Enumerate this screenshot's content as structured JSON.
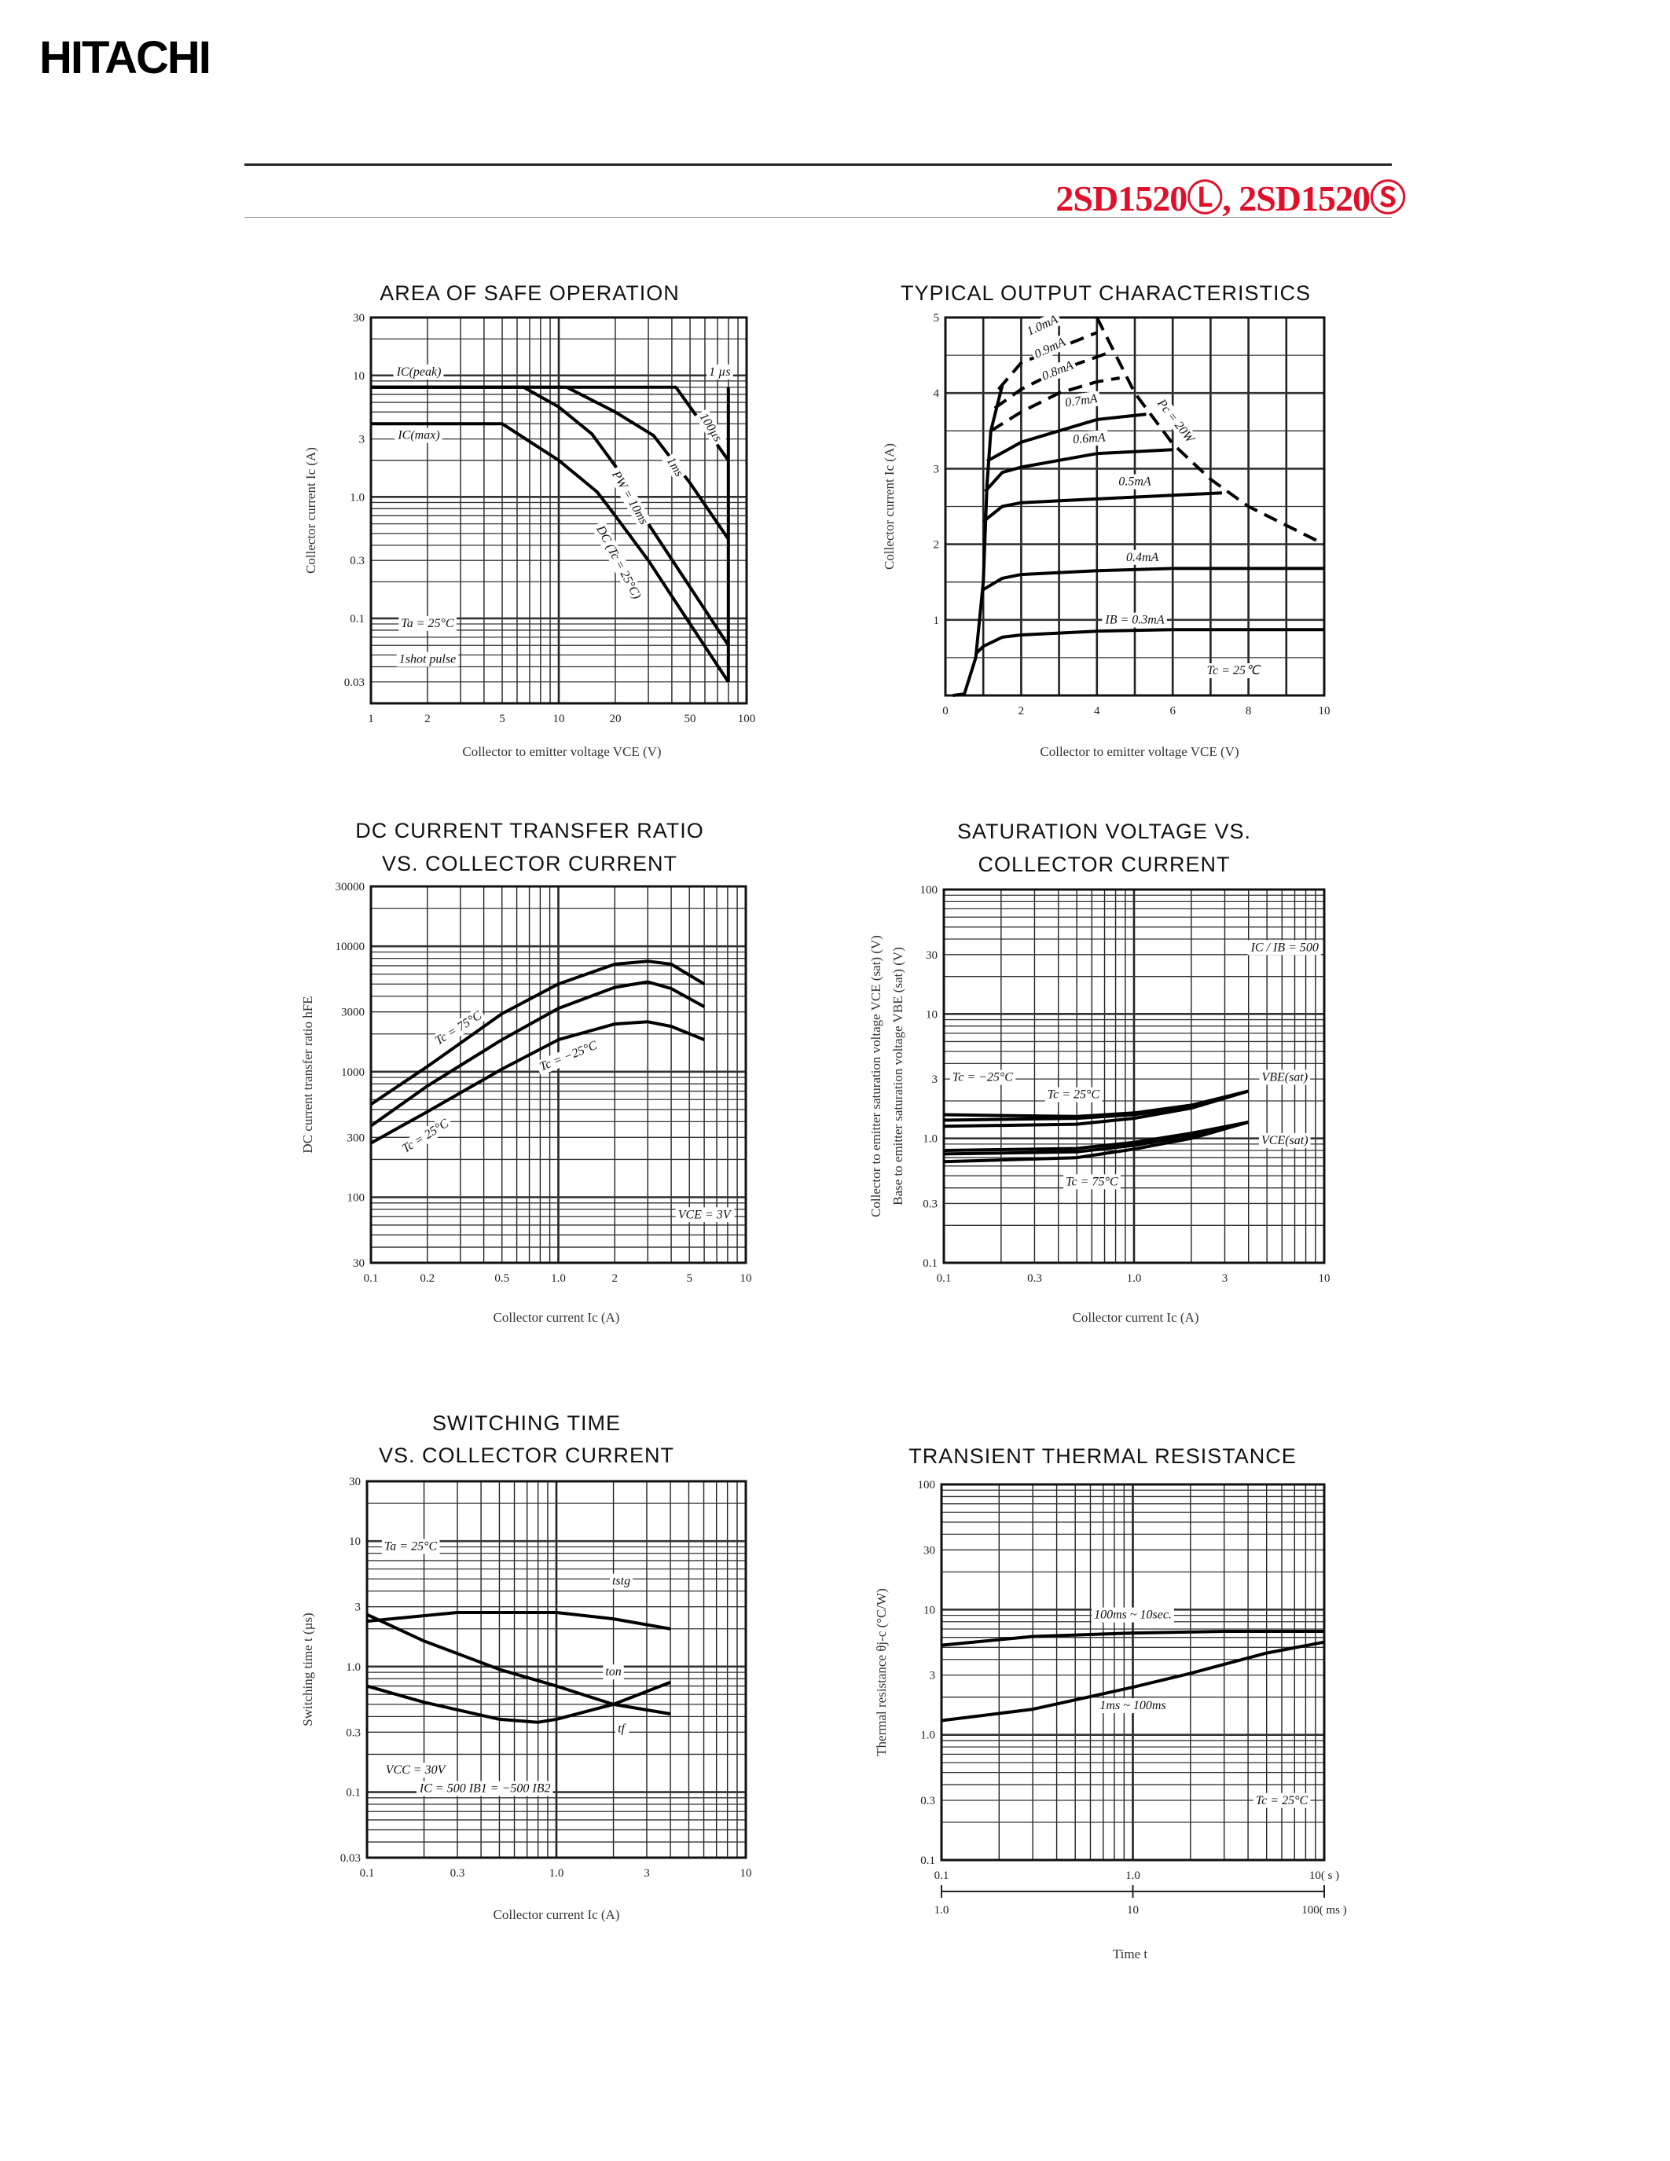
{
  "header": {
    "logo": "HITACHI",
    "part_number": "2SD1520Ⓛ, 2SD1520Ⓢ",
    "part_color": "#e0102a"
  },
  "chart_data": [
    {
      "type": "line",
      "title": [
        "AREA OF SAFE OPERATION"
      ],
      "xlabel": "Collector to emitter voltage  VCE (V)",
      "ylabel": "Collector current  Ic (A)",
      "xscale": "log",
      "yscale": "log",
      "xlim": [
        1,
        100
      ],
      "ylim": [
        0.02,
        30
      ],
      "grid": true,
      "xticks": [
        {
          "v": 1,
          "label": "1"
        },
        {
          "v": 2,
          "label": "2"
        },
        {
          "v": 5,
          "label": "5"
        },
        {
          "v": 10,
          "label": "10"
        },
        {
          "v": 20,
          "label": "20"
        },
        {
          "v": 50,
          "label": "50"
        },
        {
          "v": 100,
          "label": "100"
        }
      ],
      "yticks": [
        {
          "v": 30,
          "label": "30"
        },
        {
          "v": 10,
          "label": "10"
        },
        {
          "v": 3,
          "label": "3"
        },
        {
          "v": 1,
          "label": "1.0"
        },
        {
          "v": 0.3,
          "label": "0.3"
        },
        {
          "v": 0.1,
          "label": "0.1"
        },
        {
          "v": 0.03,
          "label": "0.03"
        }
      ],
      "series": [
        {
          "name": "100µs",
          "x": [
            1,
            42,
            80
          ],
          "y": [
            8,
            8,
            2
          ]
        },
        {
          "name": "1ms",
          "x": [
            1,
            11,
            20,
            32,
            50,
            80
          ],
          "y": [
            8,
            8,
            5,
            3.2,
            1.3,
            0.45
          ]
        },
        {
          "name": "PW = 10ms",
          "x": [
            1,
            6.5,
            10,
            15,
            20,
            30,
            80
          ],
          "y": [
            8,
            8,
            5.5,
            3.3,
            1.8,
            0.6,
            0.06
          ]
        },
        {
          "name": "DC (Tc = 25°C)",
          "x": [
            1,
            5,
            10,
            16,
            20,
            30,
            50,
            80
          ],
          "y": [
            4,
            4,
            2,
            1.1,
            0.7,
            0.3,
            0.09,
            0.03
          ]
        },
        {
          "name": "",
          "x": [
            80,
            80
          ],
          "y": [
            8,
            0.03
          ]
        }
      ],
      "annotations": [
        "IC(peak)",
        "IC(max)",
        "1 µs",
        "100µs",
        "1ms",
        "PW = 10ms",
        "DC (Tc = 25°C)",
        "Ta = 25°C",
        "1shot pulse"
      ]
    },
    {
      "type": "line",
      "title": [
        "TYPICAL OUTPUT CHARACTERISTICS"
      ],
      "xlabel": "Collector to emitter voltage  VCE (V)",
      "ylabel": "Collector current  Ic (A)",
      "xscale": "linear",
      "yscale": "linear",
      "xlim": [
        0,
        10
      ],
      "ylim": [
        0,
        5
      ],
      "grid": true,
      "xticks": [
        {
          "v": 0,
          "label": "0"
        },
        {
          "v": 2,
          "label": "2"
        },
        {
          "v": 4,
          "label": "4"
        },
        {
          "v": 6,
          "label": "6"
        },
        {
          "v": 8,
          "label": "8"
        },
        {
          "v": 10,
          "label": "10"
        }
      ],
      "yticks": [
        {
          "v": 1,
          "label": "1"
        },
        {
          "v": 2,
          "label": "2"
        },
        {
          "v": 3,
          "label": "3"
        },
        {
          "v": 4,
          "label": "4"
        },
        {
          "v": 5,
          "label": "5"
        }
      ],
      "series": [
        {
          "name": "",
          "x": [
            0.2,
            0.5,
            0.8,
            1,
            1.1,
            1.2,
            1.5
          ],
          "y": [
            0,
            0.02,
            0.5,
            1.5,
            2.8,
            3.5,
            4.1
          ]
        },
        {
          "name": "IB = 0.3mA",
          "x": [
            0.8,
            1,
            1.5,
            2,
            4,
            6,
            10
          ],
          "y": [
            0.55,
            0.65,
            0.77,
            0.8,
            0.85,
            0.87,
            0.87
          ]
        },
        {
          "name": "0.4mA",
          "x": [
            1,
            1.5,
            2,
            4,
            6,
            10
          ],
          "y": [
            1.4,
            1.55,
            1.6,
            1.65,
            1.68,
            1.68
          ]
        },
        {
          "name": "0.5mA",
          "x": [
            1,
            1.5,
            2,
            4,
            7.3
          ],
          "y": [
            2.3,
            2.5,
            2.55,
            2.6,
            2.68
          ]
        },
        {
          "name": "0.6mA",
          "x": [
            1.05,
            1.5,
            2,
            4,
            6
          ],
          "y": [
            2.7,
            2.95,
            3.02,
            3.2,
            3.25
          ]
        },
        {
          "name": "0.7mA",
          "x": [
            1.1,
            2,
            4,
            5.3
          ],
          "y": [
            3.1,
            3.35,
            3.65,
            3.72
          ]
        },
        {
          "name": "0.8mA",
          "x": [
            1.2,
            2,
            3,
            4,
            4.6
          ],
          "y": [
            3.5,
            3.75,
            4,
            4.15,
            4.2
          ],
          "dashed": true
        },
        {
          "name": "0.9mA",
          "x": [
            1.3,
            2,
            3,
            4.4
          ],
          "y": [
            3.8,
            4.05,
            4.3,
            4.55
          ],
          "dashed": true
        },
        {
          "name": "1.0mA",
          "x": [
            1.4,
            2,
            3,
            4
          ],
          "y": [
            4.05,
            4.4,
            4.6,
            4.8
          ],
          "dashed": true
        },
        {
          "name": "Pc = 20W",
          "x": [
            4,
            5,
            6,
            7,
            8,
            10
          ],
          "y": [
            5,
            4,
            3.33,
            2.86,
            2.5,
            2
          ],
          "dashed": true
        }
      ],
      "annotations": [
        "1.0mA",
        "0.9mA",
        "0.8mA",
        "0.7mA",
        "0.6mA",
        "0.5mA",
        "0.4mA",
        "IB = 0.3mA",
        "Pc = 20W",
        "Tc = 25℃"
      ]
    },
    {
      "type": "line",
      "title": [
        "DC CURRENT TRANSFER RATIO",
        "VS. COLLECTOR CURRENT"
      ],
      "xlabel": "Collector current  Ic (A)",
      "ylabel": "DC current transfer ratio  hFE",
      "xscale": "log",
      "yscale": "log",
      "xlim": [
        0.1,
        10
      ],
      "ylim": [
        30,
        30000
      ],
      "grid": true,
      "xticks": [
        {
          "v": 0.1,
          "label": "0.1"
        },
        {
          "v": 0.2,
          "label": "0.2"
        },
        {
          "v": 0.5,
          "label": "0.5"
        },
        {
          "v": 1,
          "label": "1.0"
        },
        {
          "v": 2,
          "label": "2"
        },
        {
          "v": 5,
          "label": "5"
        },
        {
          "v": 10,
          "label": "10"
        }
      ],
      "yticks": [
        {
          "v": 30000,
          "label": "30000"
        },
        {
          "v": 10000,
          "label": "10000"
        },
        {
          "v": 3000,
          "label": "3000"
        },
        {
          "v": 1000,
          "label": "1000"
        },
        {
          "v": 300,
          "label": "300"
        },
        {
          "v": 100,
          "label": "100"
        },
        {
          "v": 30,
          "label": "30"
        }
      ],
      "series": [
        {
          "name": "Tc = 75°C",
          "x": [
            0.1,
            0.2,
            0.5,
            1,
            2,
            3,
            4,
            6
          ],
          "y": [
            550,
            1100,
            2900,
            5000,
            7200,
            7600,
            7200,
            5000
          ]
        },
        {
          "name": "Tc = 25°C",
          "x": [
            0.1,
            0.2,
            0.5,
            1,
            2,
            3,
            4,
            6
          ],
          "y": [
            370,
            770,
            1800,
            3200,
            4700,
            5200,
            4600,
            3300
          ]
        },
        {
          "name": "Tc = −25°C",
          "x": [
            0.1,
            0.2,
            0.5,
            1,
            2,
            3,
            4,
            6
          ],
          "y": [
            270,
            480,
            1050,
            1800,
            2400,
            2500,
            2300,
            1800
          ]
        }
      ],
      "annotations": [
        "Tc = 75°C",
        "Tc = 25°C",
        "Tc = −25°C",
        "VCE = 3V"
      ]
    },
    {
      "type": "line",
      "title": [
        "SATURATION VOLTAGE VS.",
        "COLLECTOR CURRENT"
      ],
      "xlabel": "Collector current  Ic (A)",
      "ylabel": [
        "Collector to emitter saturation voltage  VCE (sat) (V)",
        "Base to emitter saturation voltage  VBE (sat) (V)"
      ],
      "xscale": "log",
      "yscale": "log",
      "xlim": [
        0.1,
        10
      ],
      "ylim": [
        0.1,
        100
      ],
      "grid": true,
      "xticks": [
        {
          "v": 0.1,
          "label": "0.1"
        },
        {
          "v": 0.3,
          "label": "0.3"
        },
        {
          "v": 1,
          "label": "1.0"
        },
        {
          "v": 3,
          "label": "3"
        },
        {
          "v": 10,
          "label": "10"
        }
      ],
      "yticks": [
        {
          "v": 100,
          "label": "100"
        },
        {
          "v": 30,
          "label": "30"
        },
        {
          "v": 10,
          "label": "10"
        },
        {
          "v": 3,
          "label": "3"
        },
        {
          "v": 1,
          "label": "1.0"
        },
        {
          "v": 0.3,
          "label": "0.3"
        },
        {
          "v": 0.1,
          "label": "0.1"
        }
      ],
      "series": [
        {
          "name": "VBE(sat) Tc = −25°C",
          "x": [
            0.1,
            0.5,
            1,
            2,
            4
          ],
          "y": [
            1.55,
            1.5,
            1.6,
            1.85,
            2.4
          ]
        },
        {
          "name": "VBE(sat) Tc = 25°C",
          "x": [
            0.1,
            0.5,
            1,
            2,
            4
          ],
          "y": [
            1.4,
            1.45,
            1.55,
            1.8,
            2.4
          ]
        },
        {
          "name": "VBE(sat) Tc = 75°C",
          "x": [
            0.1,
            0.5,
            1,
            2,
            4
          ],
          "y": [
            1.25,
            1.3,
            1.45,
            1.75,
            2.4
          ]
        },
        {
          "name": "VCE(sat) Tc = −25°C",
          "x": [
            0.1,
            0.5,
            1,
            2,
            4
          ],
          "y": [
            0.8,
            0.83,
            0.93,
            1.1,
            1.35
          ]
        },
        {
          "name": "VCE(sat) Tc = 25°C",
          "x": [
            0.1,
            0.5,
            1,
            2,
            4
          ],
          "y": [
            0.75,
            0.78,
            0.88,
            1.05,
            1.35
          ]
        },
        {
          "name": "VCE(sat) Tc = 75°C",
          "x": [
            0.1,
            0.5,
            1,
            2,
            4
          ],
          "y": [
            0.65,
            0.7,
            0.82,
            1.0,
            1.35
          ]
        }
      ],
      "annotations": [
        "IC / IB = 500",
        "VBE(sat)",
        "VCE(sat)",
        "Tc = −25°C",
        "Tc = 25°C",
        "Tc = 75°C"
      ]
    },
    {
      "type": "line",
      "title": [
        "SWITCHING TIME",
        "VS. COLLECTOR CURRENT"
      ],
      "xlabel": "Collector current  Ic (A)",
      "ylabel": "Switching time  t (µs)",
      "xscale": "log",
      "yscale": "log",
      "xlim": [
        0.1,
        10
      ],
      "ylim": [
        0.03,
        30
      ],
      "grid": true,
      "xticks": [
        {
          "v": 0.1,
          "label": "0.1"
        },
        {
          "v": 0.3,
          "label": "0.3"
        },
        {
          "v": 1,
          "label": "1.0"
        },
        {
          "v": 3,
          "label": "3"
        },
        {
          "v": 10,
          "label": "10"
        }
      ],
      "yticks": [
        {
          "v": 30,
          "label": "30"
        },
        {
          "v": 10,
          "label": "10"
        },
        {
          "v": 3,
          "label": "3"
        },
        {
          "v": 1,
          "label": "1.0"
        },
        {
          "v": 0.3,
          "label": "0.3"
        },
        {
          "v": 0.1,
          "label": "0.1"
        },
        {
          "v": 0.03,
          "label": "0.03"
        }
      ],
      "series": [
        {
          "name": "tstg",
          "x": [
            0.1,
            0.3,
            1,
            2,
            4
          ],
          "y": [
            2.3,
            2.7,
            2.7,
            2.4,
            2.0
          ]
        },
        {
          "name": "ton",
          "x": [
            0.1,
            0.2,
            0.5,
            1,
            2,
            4
          ],
          "y": [
            2.6,
            1.6,
            0.95,
            0.7,
            0.5,
            0.42
          ]
        },
        {
          "name": "tf",
          "x": [
            0.1,
            0.2,
            0.5,
            0.8,
            1,
            2,
            4
          ],
          "y": [
            0.7,
            0.52,
            0.38,
            0.36,
            0.38,
            0.5,
            0.75
          ]
        }
      ],
      "annotations": [
        "Ta = 25°C",
        "tstg",
        "ton",
        "tf",
        "VCC = 30V",
        "IC = 500 IB1 = −500 IB2"
      ]
    },
    {
      "type": "line",
      "title": [
        "TRANSIENT THERMAL RESISTANCE"
      ],
      "xlabel": "Time  t",
      "ylabel": "Thermal resistance  θj-c (°C/W)",
      "xscale": "log",
      "yscale": "log",
      "xlim": [
        0.1,
        10
      ],
      "ylim": [
        0.1,
        100
      ],
      "grid": true,
      "xticks": [
        {
          "v": 0.1,
          "label": "0.1"
        },
        {
          "v": 1,
          "label": "1.0"
        },
        {
          "v": 10,
          "label": "10( s )"
        }
      ],
      "xticks_secondary": [
        {
          "v": 0.1,
          "label": "1.0"
        },
        {
          "v": 1,
          "label": "10"
        },
        {
          "v": 10,
          "label": "100( ms )"
        }
      ],
      "yticks": [
        {
          "v": 100,
          "label": "100"
        },
        {
          "v": 30,
          "label": "30"
        },
        {
          "v": 10,
          "label": "10"
        },
        {
          "v": 3,
          "label": "3"
        },
        {
          "v": 1,
          "label": "1.0"
        },
        {
          "v": 0.3,
          "label": "0.3"
        },
        {
          "v": 0.1,
          "label": "0.1"
        }
      ],
      "series": [
        {
          "name": "100ms ~ 10sec.",
          "x": [
            0.1,
            0.3,
            1,
            3,
            10
          ],
          "y": [
            5.2,
            6.1,
            6.5,
            6.7,
            6.7
          ]
        },
        {
          "name": "1ms ~ 100ms",
          "x": [
            0.1,
            0.3,
            1,
            2,
            5,
            10
          ],
          "y": [
            1.3,
            1.6,
            2.4,
            3.1,
            4.5,
            5.5
          ]
        }
      ],
      "annotations": [
        "100ms ~ 10sec.",
        "1ms ~ 100ms",
        "Tc = 25°C"
      ]
    }
  ]
}
